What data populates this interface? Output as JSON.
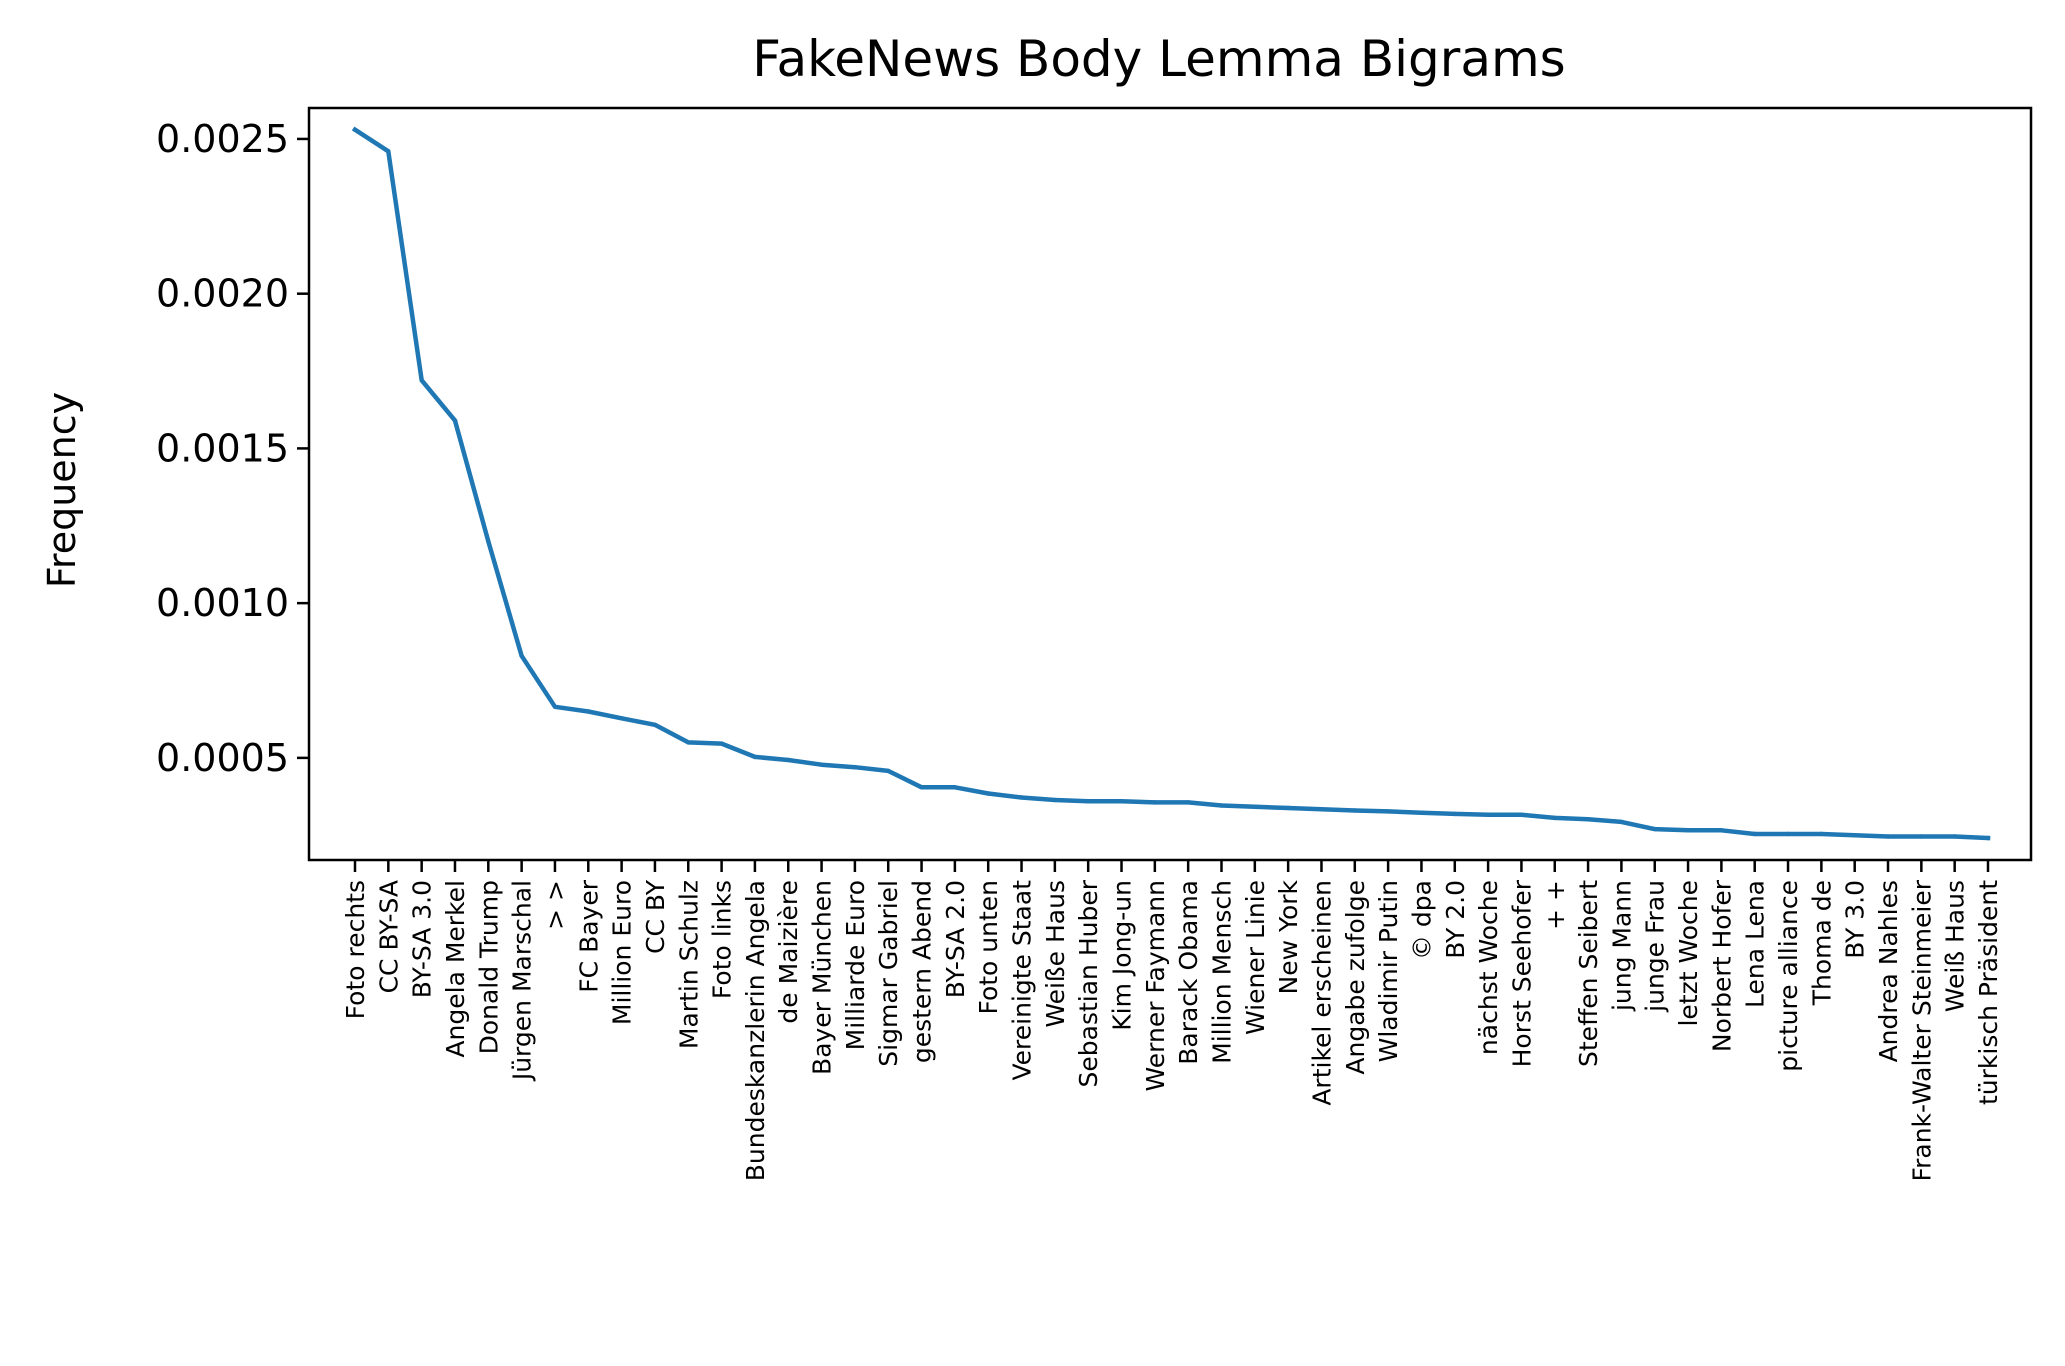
{
  "chart_data": {
    "type": "line",
    "title": "FakeNews Body Lemma Bigrams",
    "xlabel": "",
    "ylabel": "Frequency",
    "ylim": [
      0.00017,
      0.0026
    ],
    "yticks": [
      0.0005,
      0.001,
      0.0015,
      0.002,
      0.0025
    ],
    "ytick_labels": [
      "0.0005",
      "0.0010",
      "0.0015",
      "0.0020",
      "0.0025"
    ],
    "grid": false,
    "legend": "none",
    "series": [
      {
        "color": "#1f77b4",
        "values": [
          0.00253,
          0.00246,
          0.00172,
          0.00159,
          0.0012,
          0.00083,
          0.000665,
          0.00065,
          0.000628,
          0.000607,
          0.00055,
          0.000546,
          0.000503,
          0.000493,
          0.000478,
          0.00047,
          0.000458,
          0.000405,
          0.000405,
          0.000385,
          0.000372,
          0.000364,
          0.00036,
          0.00036,
          0.000356,
          0.000356,
          0.000346,
          0.000342,
          0.000338,
          0.000334,
          0.00033,
          0.000327,
          0.000323,
          0.000319,
          0.000316,
          0.000316,
          0.000306,
          0.000302,
          0.000293,
          0.00027,
          0.000266,
          0.000266,
          0.000254,
          0.000254,
          0.000254,
          0.00025,
          0.000246,
          0.000246,
          0.000246,
          0.000241
        ]
      }
    ],
    "categories": [
      "Foto rechts",
      "CC BY-SA",
      "BY-SA 3.0",
      "Angela Merkel",
      "Donald Trump",
      "Jürgen Marschal",
      "> >",
      "FC Bayer",
      "Million Euro",
      "CC BY",
      "Martin Schulz",
      "Foto links",
      "Bundeskanzlerin Angela",
      "de Maizière",
      "Bayer München",
      "Milliarde Euro",
      "Sigmar Gabriel",
      "gestern Abend",
      "BY-SA 2.0",
      "Foto unten",
      "Vereinigte Staat",
      "Weiße Haus",
      "Sebastian Huber",
      "Kim Jong-un",
      "Werner Faymann",
      "Barack Obama",
      "Million Mensch",
      "Wiener Linie",
      "New York",
      "Artikel erscheinen",
      "Angabe zufolge",
      "Wladimir Putin",
      "© dpa",
      "BY 2.0",
      "nächst Woche",
      "Horst Seehofer",
      "+ +",
      "Steffen Seibert",
      "jung Mann",
      "junge Frau",
      "letzt Woche",
      "Norbert Hofer",
      "Lena Lena",
      "picture alliance",
      "Thoma de",
      "BY 3.0",
      "Andrea Nahles",
      "Frank-Walter Steinmeier",
      "Weiß Haus",
      "türkisch Präsident"
    ]
  }
}
